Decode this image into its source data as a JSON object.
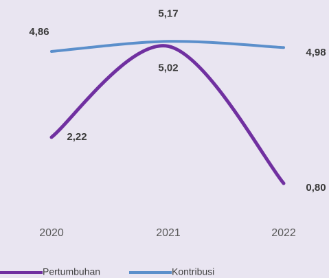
{
  "chart_data": {
    "type": "line",
    "categories": [
      "2020",
      "2021",
      "2022"
    ],
    "series": [
      {
        "name": "Pertumbuhan",
        "color": "#7030a0",
        "values": [
          2.22,
          5.02,
          0.8
        ],
        "value_labels": [
          "2,22",
          "5,02",
          "0,80"
        ]
      },
      {
        "name": "Kontribusi",
        "color": "#5b8fcb",
        "values": [
          4.86,
          5.17,
          4.98
        ],
        "value_labels": [
          "4,86",
          "5,17",
          "4,98"
        ]
      }
    ],
    "ylim": [
      0,
      6
    ]
  }
}
